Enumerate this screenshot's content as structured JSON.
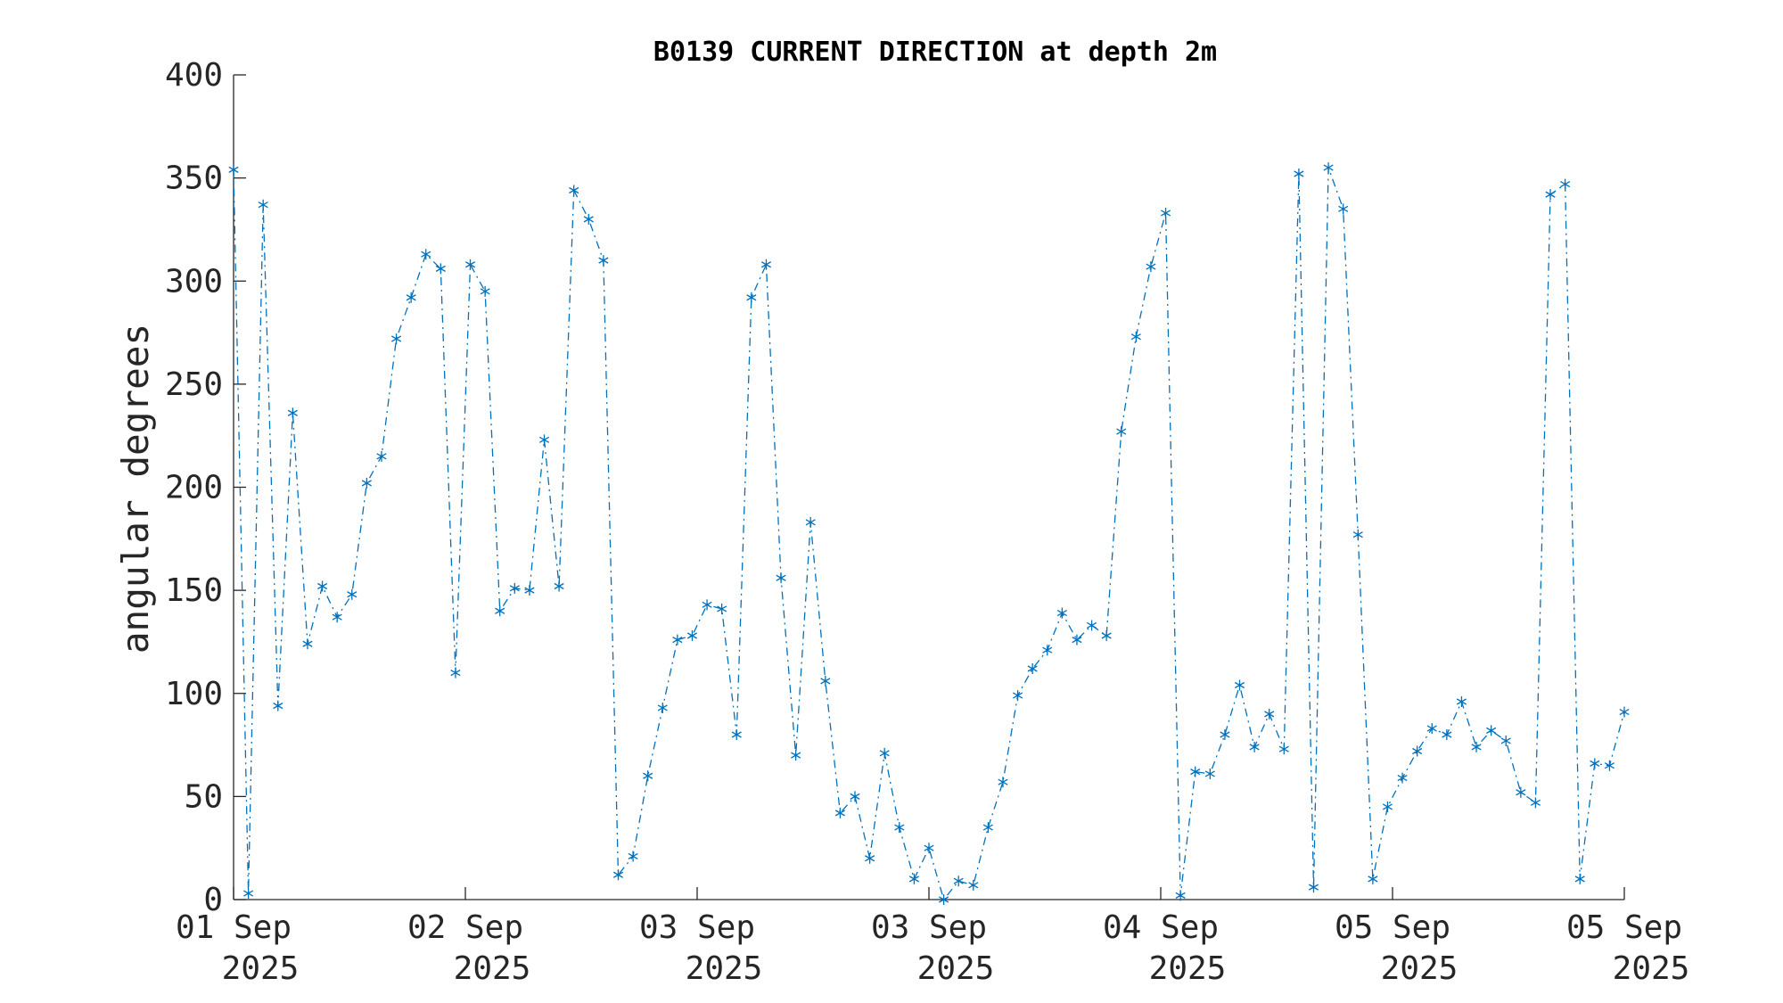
{
  "chart_data": {
    "type": "line",
    "title": "B0139 CURRENT DIRECTION at depth 2m",
    "xlabel": "",
    "ylabel": "angular degrees",
    "ylim": [
      0,
      400
    ],
    "yticks": [
      0,
      50,
      100,
      150,
      200,
      250,
      300,
      350,
      400
    ],
    "xlim": [
      0,
      96
    ],
    "xticks": [
      {
        "x": 0,
        "line1": "01 Sep",
        "line2": "2025"
      },
      {
        "x": 16,
        "line1": "02 Sep",
        "line2": "2025"
      },
      {
        "x": 32,
        "line1": "03 Sep",
        "line2": "2025"
      },
      {
        "x": 48,
        "line1": "03 Sep",
        "line2": "2025"
      },
      {
        "x": 64,
        "line1": "04 Sep",
        "line2": "2025"
      },
      {
        "x": 80,
        "line1": "05 Sep",
        "line2": "2025"
      },
      {
        "x": 96,
        "line1": "05 Sep",
        "line2": "2025"
      }
    ],
    "grid": false,
    "color": "#0072BD",
    "marker": "asterisk",
    "line_style": "dash-dot",
    "series": [
      {
        "values": [
          354,
          3,
          337,
          94,
          236,
          124,
          152,
          137,
          148,
          202,
          215,
          272,
          292,
          313,
          306,
          110,
          308,
          295,
          140,
          151,
          150,
          223,
          152,
          344,
          330,
          310,
          12,
          21,
          60,
          93,
          126,
          128,
          143,
          141,
          80,
          292,
          308,
          156,
          70,
          183,
          106,
          42,
          50,
          20,
          71,
          35,
          10,
          25,
          0,
          9,
          7,
          35,
          57,
          99,
          112,
          121,
          139,
          126,
          133,
          128,
          227,
          273,
          307,
          333,
          2,
          62,
          61,
          80,
          104,
          74,
          90,
          73,
          352,
          6,
          355,
          335,
          177,
          10,
          45,
          59,
          72,
          83,
          80,
          96,
          74,
          82,
          77,
          52,
          47,
          342,
          347,
          10,
          66,
          65,
          91
        ]
      }
    ]
  }
}
